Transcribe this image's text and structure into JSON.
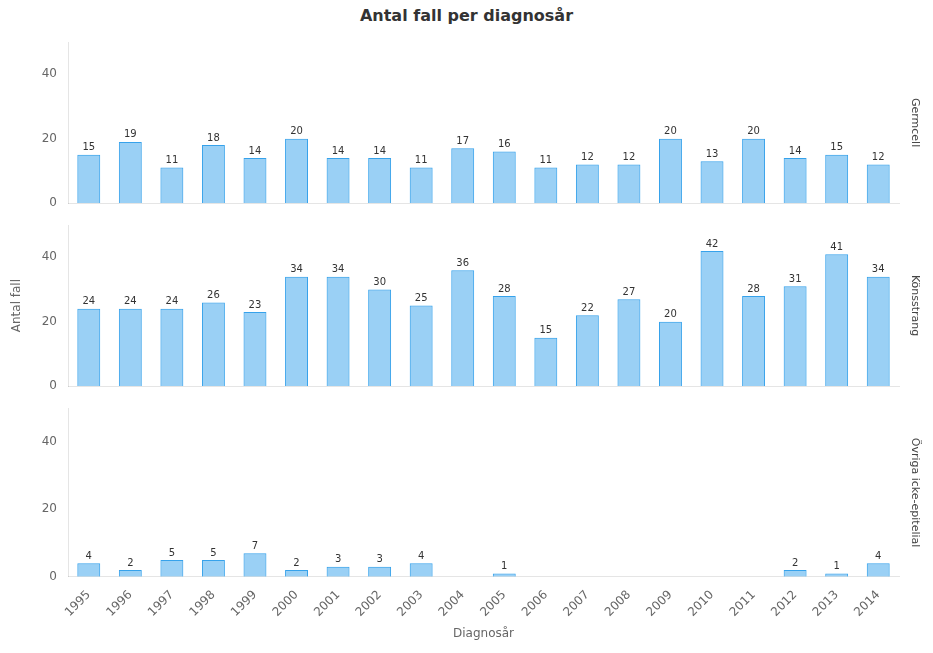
{
  "chart_data": [
    {
      "type": "bar",
      "title": "Antal fall per diagnosår",
      "subtitle": "Germcell",
      "categories": [
        1995,
        1996,
        1997,
        1998,
        1999,
        2000,
        2001,
        2002,
        2003,
        2004,
        2005,
        2006,
        2007,
        2008,
        2009,
        2010,
        2011,
        2012,
        2013,
        2014
      ],
      "values": [
        15,
        19,
        11,
        18,
        14,
        20,
        14,
        14,
        11,
        17,
        16,
        11,
        12,
        12,
        20,
        13,
        20,
        14,
        15,
        12
      ],
      "ylim": [
        0,
        50
      ],
      "yticks": [
        0,
        20,
        40
      ],
      "grid": false,
      "data_labels": true,
      "tick_labels": "y"
    },
    {
      "type": "bar",
      "subtitle": "Könsstrang",
      "ylabel": "Antal fall",
      "categories": [
        1995,
        1996,
        1997,
        1998,
        1999,
        2000,
        2001,
        2002,
        2003,
        2004,
        2005,
        2006,
        2007,
        2008,
        2009,
        2010,
        2011,
        2012,
        2013,
        2014
      ],
      "values": [
        24,
        24,
        24,
        26,
        23,
        34,
        34,
        30,
        25,
        36,
        28,
        15,
        22,
        27,
        20,
        42,
        28,
        31,
        41,
        34
      ],
      "ylim": [
        0,
        50
      ],
      "yticks": [
        0,
        20,
        40
      ],
      "grid": false,
      "data_labels": true,
      "tick_labels": "y"
    },
    {
      "type": "bar",
      "subtitle": "Övriga icke-epitelial",
      "xlabel": "Diagnosår",
      "categories": [
        1995,
        1996,
        1997,
        1998,
        1999,
        2000,
        2001,
        2002,
        2003,
        2004,
        2005,
        2006,
        2007,
        2008,
        2009,
        2010,
        2011,
        2012,
        2013,
        2014
      ],
      "values": [
        4,
        2,
        5,
        5,
        7,
        2,
        3,
        3,
        4,
        0,
        1,
        0,
        0,
        0,
        0,
        0,
        0,
        2,
        1,
        4
      ],
      "ylim": [
        0,
        50
      ],
      "yticks": [
        0,
        20,
        40
      ],
      "grid": false,
      "data_labels": true
    }
  ]
}
